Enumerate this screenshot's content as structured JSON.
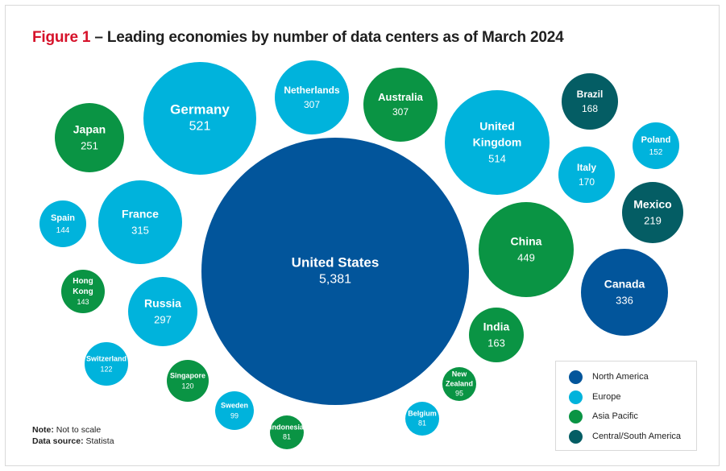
{
  "header": {
    "figure_label": "Figure 1",
    "title_text": " – Leading economies by number of data centers as of March 2024"
  },
  "notes": {
    "note_label": "Note:",
    "note_text": " Not to scale",
    "source_label": "Data source:",
    "source_text": " Statista"
  },
  "colors": {
    "North America": "#02559b",
    "Europe": "#00b3dc",
    "Asia Pacific": "#0a9444",
    "Central/South America": "#045d64",
    "figure_accent": "#d6122a"
  },
  "legend": [
    {
      "label": "North America"
    },
    {
      "label": "Europe"
    },
    {
      "label": "Asia Pacific"
    },
    {
      "label": "Central/South America"
    }
  ],
  "chart_data": {
    "type": "bubble",
    "title": "Leading economies by number of data centers as of March 2024",
    "points": [
      {
        "label": "United States",
        "value": "5,381",
        "region": "North America"
      },
      {
        "label": "Germany",
        "value": "521",
        "region": "Europe"
      },
      {
        "label": "United Kingdom",
        "value": "514",
        "region": "Europe"
      },
      {
        "label": "China",
        "value": "449",
        "region": "Asia Pacific"
      },
      {
        "label": "Canada",
        "value": "336",
        "region": "North America"
      },
      {
        "label": "France",
        "value": "315",
        "region": "Europe"
      },
      {
        "label": "Netherlands",
        "value": "307",
        "region": "Europe"
      },
      {
        "label": "Australia",
        "value": "307",
        "region": "Asia Pacific"
      },
      {
        "label": "Russia",
        "value": "297",
        "region": "Europe"
      },
      {
        "label": "Japan",
        "value": "251",
        "region": "Asia Pacific"
      },
      {
        "label": "Mexico",
        "value": "219",
        "region": "Central/South America"
      },
      {
        "label": "Italy",
        "value": "170",
        "region": "Europe"
      },
      {
        "label": "Brazil",
        "value": "168",
        "region": "Central/South America"
      },
      {
        "label": "India",
        "value": "163",
        "region": "Asia Pacific"
      },
      {
        "label": "Poland",
        "value": "152",
        "region": "Europe"
      },
      {
        "label": "Spain",
        "value": "144",
        "region": "Europe"
      },
      {
        "label": "Hong Kong",
        "value": "143",
        "region": "Asia Pacific"
      },
      {
        "label": "Switzerland",
        "value": "122",
        "region": "Europe"
      },
      {
        "label": "Singapore",
        "value": "120",
        "region": "Asia Pacific"
      },
      {
        "label": "Sweden",
        "value": "99",
        "region": "Europe"
      },
      {
        "label": "New Zealand",
        "value": "95",
        "region": "Asia Pacific"
      },
      {
        "label": "Belgium",
        "value": "81",
        "region": "Europe"
      },
      {
        "label": "Indonesia",
        "value": "81",
        "region": "Asia Pacific"
      }
    ]
  }
}
